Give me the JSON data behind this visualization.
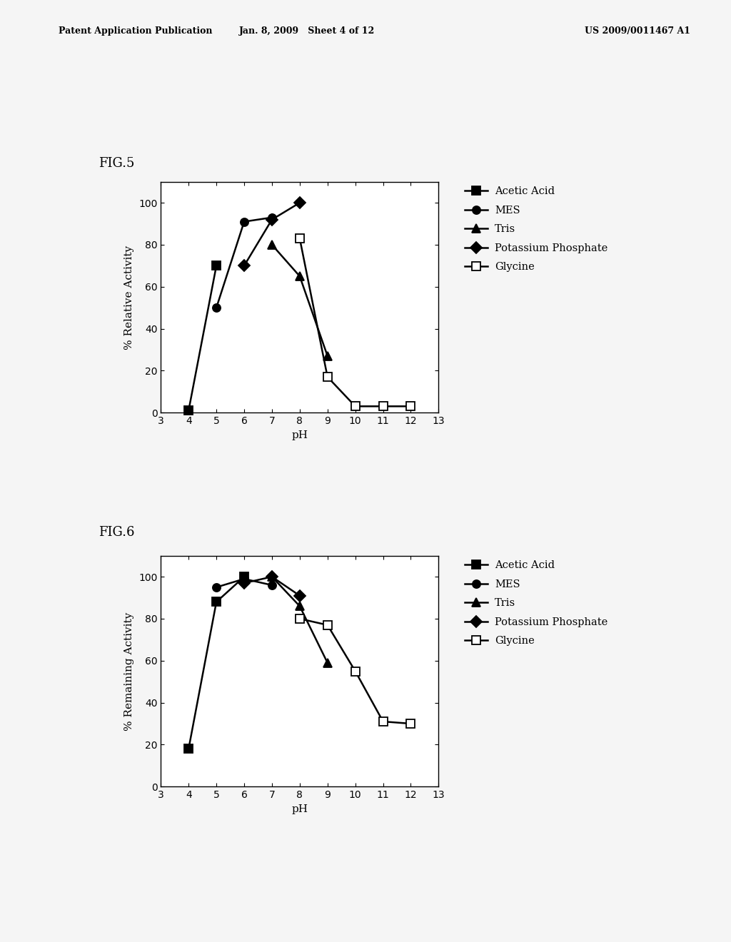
{
  "fig5": {
    "fig_label": "FIG.5",
    "ylabel": "% Relative Activity",
    "xlabel": "pH",
    "xlim": [
      3,
      13
    ],
    "ylim": [
      0,
      110
    ],
    "yticks": [
      0,
      20,
      40,
      60,
      80,
      100
    ],
    "xticks": [
      3,
      4,
      5,
      6,
      7,
      8,
      9,
      10,
      11,
      12,
      13
    ],
    "series": [
      {
        "key": "acetic_acid",
        "label": "Acetic Acid",
        "x": [
          4,
          5
        ],
        "y": [
          1,
          70
        ],
        "marker": "s",
        "fillstyle": "full"
      },
      {
        "key": "mes",
        "label": "MES",
        "x": [
          5,
          6,
          7
        ],
        "y": [
          50,
          91,
          93
        ],
        "marker": "o",
        "fillstyle": "full"
      },
      {
        "key": "tris",
        "label": "Tris",
        "x": [
          7,
          8,
          9
        ],
        "y": [
          80,
          65,
          27
        ],
        "marker": "^",
        "fillstyle": "full"
      },
      {
        "key": "potassium_phosphate",
        "label": "Potassium Phosphate",
        "x": [
          6,
          7,
          8
        ],
        "y": [
          70,
          92,
          100
        ],
        "marker": "D",
        "fillstyle": "full"
      },
      {
        "key": "glycine",
        "label": "Glycine",
        "x": [
          8,
          9,
          10,
          11,
          12
        ],
        "y": [
          83,
          17,
          3,
          3,
          3
        ],
        "marker": "s",
        "fillstyle": "none"
      }
    ]
  },
  "fig6": {
    "fig_label": "FIG.6",
    "ylabel": "% Remaining Activity",
    "xlabel": "pH",
    "xlim": [
      3,
      13
    ],
    "ylim": [
      0,
      110
    ],
    "yticks": [
      0,
      20,
      40,
      60,
      80,
      100
    ],
    "xticks": [
      3,
      4,
      5,
      6,
      7,
      8,
      9,
      10,
      11,
      12,
      13
    ],
    "series": [
      {
        "key": "acetic_acid",
        "label": "Acetic Acid",
        "x": [
          4,
          5,
          6
        ],
        "y": [
          18,
          88,
          100
        ],
        "marker": "s",
        "fillstyle": "full"
      },
      {
        "key": "mes",
        "label": "MES",
        "x": [
          5,
          6,
          7
        ],
        "y": [
          95,
          99,
          96
        ],
        "marker": "o",
        "fillstyle": "full"
      },
      {
        "key": "tris",
        "label": "Tris",
        "x": [
          7,
          8,
          9
        ],
        "y": [
          100,
          86,
          59
        ],
        "marker": "^",
        "fillstyle": "full"
      },
      {
        "key": "potassium_phosphate",
        "label": "Potassium Phosphate",
        "x": [
          6,
          7,
          8
        ],
        "y": [
          97,
          100,
          91
        ],
        "marker": "D",
        "fillstyle": "full"
      },
      {
        "key": "glycine",
        "label": "Glycine",
        "x": [
          8,
          9,
          10,
          11,
          12
        ],
        "y": [
          80,
          77,
          55,
          31,
          30
        ],
        "marker": "s",
        "fillstyle": "none"
      }
    ]
  },
  "background_color": "#f5f5f5",
  "header_left": "Patent Application Publication",
  "header_mid": "Jan. 8, 2009   Sheet 4 of 12",
  "header_right": "US 2009/0011467 A1",
  "marker_size": 8,
  "linewidth": 1.8
}
